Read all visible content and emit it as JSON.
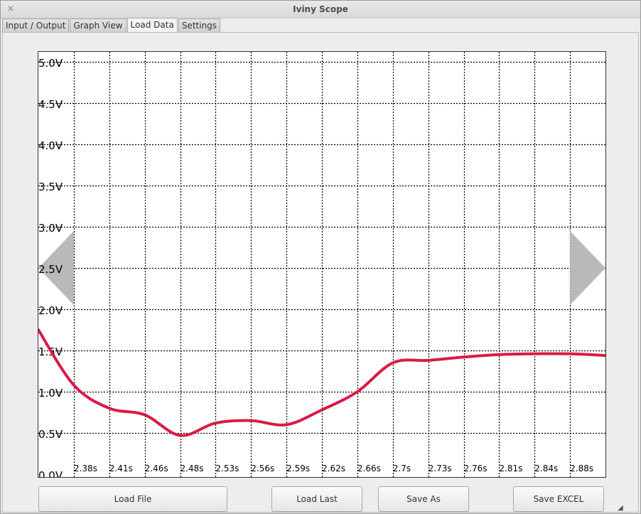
{
  "window": {
    "title": "Iviny Scope",
    "close_icon": "×"
  },
  "tabs": [
    {
      "label": "Input / Output",
      "active": false
    },
    {
      "label": "Graph View",
      "active": false
    },
    {
      "label": "Load Data",
      "active": true
    },
    {
      "label": "Settings",
      "active": false
    }
  ],
  "chart_data": {
    "type": "line",
    "y_tick_labels": [
      "0.0V",
      "0.5V",
      "1.0V",
      "1.5V",
      "2.0V",
      "2.5V",
      "3.0V",
      "3.5V",
      "4.0V",
      "4.5V",
      "5.0V"
    ],
    "y_ticks": [
      0,
      0.5,
      1.0,
      1.5,
      2.0,
      2.5,
      3.0,
      3.5,
      4.0,
      4.5,
      5.0
    ],
    "ylim": [
      0,
      5.0
    ],
    "x_tick_labels": [
      "2.38s",
      "2.41s",
      "2.46s",
      "2.48s",
      "2.53s",
      "2.56s",
      "2.59s",
      "2.62s",
      "2.66s",
      "2.7s",
      "2.73s",
      "2.76s",
      "2.81s",
      "2.84s",
      "2.88s"
    ],
    "grid": true,
    "line_color": "#d81b45",
    "x_divisions": 16,
    "series": [
      {
        "values": [
          1.75,
          1.08,
          0.8,
          0.72,
          0.47,
          0.62,
          0.65,
          0.6,
          0.78,
          1.0,
          1.35,
          1.38,
          1.42,
          1.45,
          1.46,
          1.46,
          1.44
        ]
      }
    ]
  },
  "nav": {
    "prev_icon": "triangle-left-icon",
    "next_icon": "triangle-right-icon"
  },
  "buttons": {
    "load_file": "Load File",
    "load_last": "Load Last",
    "save_as": "Save As",
    "save_excel": "Save EXCEL"
  }
}
